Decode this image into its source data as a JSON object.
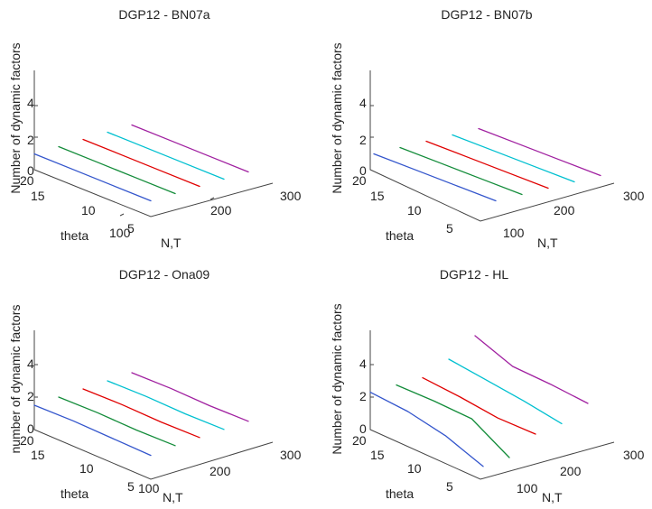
{
  "chart_data": [
    {
      "type": "line",
      "projection": "3d",
      "title": "DGP12 - BN07a",
      "xlabel": "N,T",
      "ylabel": "theta",
      "zlabel": "Number of dynamic factors",
      "xticks": [
        "100",
        "200",
        "300"
      ],
      "yticks": [
        "5",
        "10",
        "15",
        "20"
      ],
      "zticks": [
        "0",
        "2",
        "4"
      ],
      "grid": false,
      "legend": "none",
      "series": [
        {
          "color": "#3355cc",
          "theta": [
            20,
            15,
            10,
            5
          ],
          "z": [
            1.0,
            1.0,
            1.0,
            1.0
          ]
        },
        {
          "color": "#138c3a",
          "theta": [
            20,
            15,
            10,
            5
          ],
          "z": [
            1.0,
            1.0,
            1.0,
            1.0
          ]
        },
        {
          "color": "#e00000",
          "theta": [
            20,
            15,
            10,
            5
          ],
          "z": [
            1.0,
            1.0,
            1.0,
            1.0
          ]
        },
        {
          "color": "#00c0d0",
          "theta": [
            20,
            15,
            10,
            5
          ],
          "z": [
            1.0,
            1.0,
            1.0,
            1.0
          ]
        },
        {
          "color": "#a020a0",
          "theta": [
            20,
            15,
            10,
            5
          ],
          "z": [
            1.0,
            1.0,
            1.0,
            1.0
          ]
        }
      ]
    },
    {
      "type": "line",
      "projection": "3d",
      "title": "DGP12 - BN07b",
      "xlabel": "N,T",
      "ylabel": "theta",
      "zlabel": "Number of dynamic factors",
      "xticks": [
        "100",
        "200",
        "300"
      ],
      "yticks": [
        "5",
        "10",
        "15",
        "20"
      ],
      "zticks": [
        "0",
        "2",
        "4"
      ],
      "grid": false,
      "legend": "none",
      "series": [
        {
          "color": "#3355cc",
          "theta": [
            20,
            15,
            10,
            5
          ],
          "z": [
            1.0,
            1.0,
            1.0,
            1.0
          ]
        },
        {
          "color": "#138c3a",
          "theta": [
            20,
            15,
            10,
            5
          ],
          "z": [
            1.0,
            1.0,
            1.0,
            1.0
          ]
        },
        {
          "color": "#e00000",
          "theta": [
            20,
            15,
            10,
            5
          ],
          "z": [
            1.0,
            1.0,
            1.0,
            1.0
          ]
        },
        {
          "color": "#00c0d0",
          "theta": [
            20,
            15,
            10,
            5
          ],
          "z": [
            1.0,
            1.0,
            1.0,
            1.0
          ]
        },
        {
          "color": "#a020a0",
          "theta": [
            20,
            15,
            10,
            5
          ],
          "z": [
            1.0,
            1.0,
            1.0,
            1.0
          ]
        }
      ]
    },
    {
      "type": "line",
      "projection": "3d",
      "title": "DGP12 - Ona09",
      "xlabel": "N,T",
      "ylabel": "theta",
      "zlabel": "number of dynamic factors",
      "xticks": [
        "100",
        "200",
        "300"
      ],
      "yticks": [
        "5",
        "10",
        "15",
        "20"
      ],
      "zticks": [
        "0",
        "2",
        "4"
      ],
      "grid": false,
      "legend": "none",
      "series": [
        {
          "color": "#3355cc",
          "theta": [
            20,
            15,
            10,
            5
          ],
          "z": [
            1.5,
            1.5,
            1.4,
            1.3
          ]
        },
        {
          "color": "#138c3a",
          "theta": [
            20,
            15,
            10,
            5
          ],
          "z": [
            1.5,
            1.5,
            1.4,
            1.4
          ]
        },
        {
          "color": "#e00000",
          "theta": [
            20,
            15,
            10,
            5
          ],
          "z": [
            1.5,
            1.5,
            1.4,
            1.4
          ]
        },
        {
          "color": "#00c0d0",
          "theta": [
            20,
            15,
            10,
            5
          ],
          "z": [
            1.5,
            1.5,
            1.4,
            1.4
          ]
        },
        {
          "color": "#a020a0",
          "theta": [
            20,
            15,
            10,
            5
          ],
          "z": [
            1.5,
            1.5,
            1.4,
            1.4
          ]
        }
      ]
    },
    {
      "type": "line",
      "projection": "3d",
      "title": "DGP12 - HL",
      "xlabel": "N,T",
      "ylabel": "theta",
      "zlabel": "Number of dynamic factors",
      "xticks": [
        "100",
        "200",
        "300"
      ],
      "yticks": [
        "5",
        "10",
        "15",
        "20"
      ],
      "zticks": [
        "0",
        "2",
        "4"
      ],
      "grid": false,
      "legend": "none",
      "series": [
        {
          "color": "#3355cc",
          "theta": [
            20,
            15,
            10,
            5
          ],
          "z": [
            2.3,
            2.0,
            1.4,
            0.4
          ]
        },
        {
          "color": "#138c3a",
          "theta": [
            20,
            15,
            10,
            5
          ],
          "z": [
            2.3,
            2.2,
            2.0,
            0.5
          ]
        },
        {
          "color": "#e00000",
          "theta": [
            20,
            15,
            10,
            5
          ],
          "z": [
            2.3,
            2.0,
            1.6,
            1.5
          ]
        },
        {
          "color": "#00c0d0",
          "theta": [
            20,
            15,
            10,
            5
          ],
          "z": [
            3.0,
            2.6,
            2.2,
            1.7
          ]
        },
        {
          "color": "#a020a0",
          "theta": [
            20,
            15,
            10,
            5
          ],
          "z": [
            4.0,
            3.0,
            2.8,
            2.5
          ]
        }
      ]
    }
  ]
}
